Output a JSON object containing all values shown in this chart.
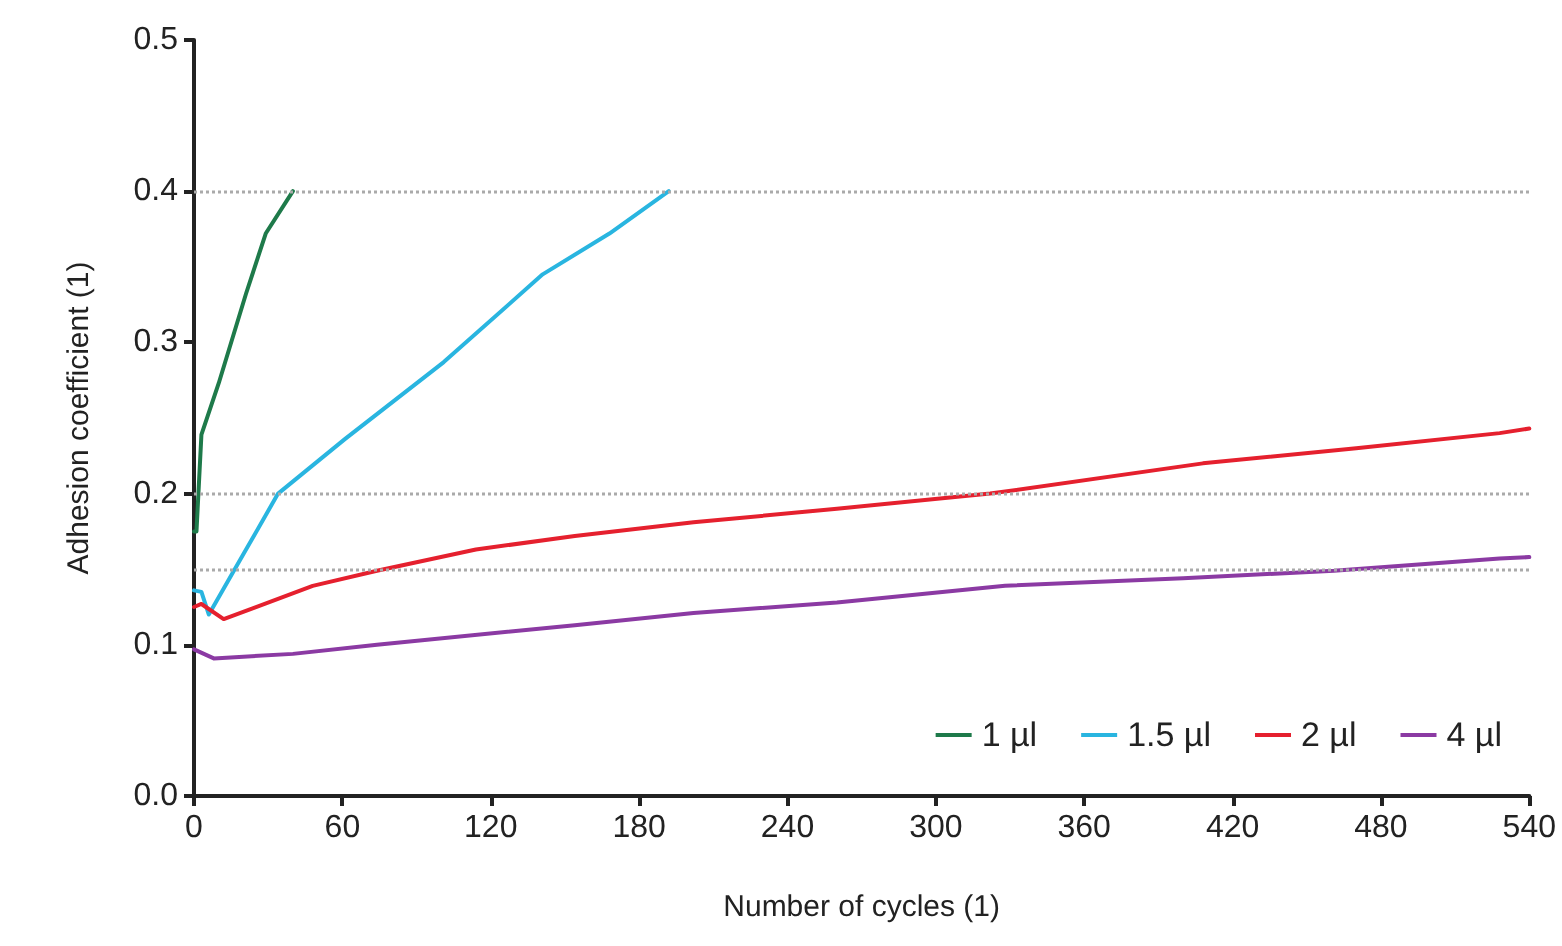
{
  "chart_data": {
    "type": "line",
    "xlabel": "Number of cycles (1)",
    "ylabel": "Adhesion coefficient (1)",
    "xlim": [
      0,
      540
    ],
    "xticks": [
      0,
      60,
      120,
      180,
      240,
      300,
      360,
      420,
      480,
      540
    ],
    "ylim": [
      0,
      0.5
    ],
    "yticks": [
      {
        "value": 0,
        "label": "0.0"
      },
      {
        "value": 0.1,
        "label": "0.1"
      },
      {
        "value": 0.2,
        "label": "0.2"
      },
      {
        "value": 0.3,
        "label": "0.3"
      },
      {
        "value": 0.4,
        "label": "0.4"
      },
      {
        "value": 0.5,
        "label": "0.5"
      }
    ],
    "grid": false,
    "legend": "bottom right",
    "marker": "none",
    "line_style": "solid",
    "ref_lines": [
      {
        "axis": "y",
        "value": 0.4,
        "color": "#aaaaaa",
        "line_style": "dotted"
      },
      {
        "axis": "y",
        "value": 0.2,
        "color": "#aaaaaa",
        "line_style": "dotted"
      },
      {
        "axis": "y",
        "value": 0.15,
        "color": "#aaaaaa",
        "line_style": "dotted"
      }
    ],
    "series": [
      {
        "name": "1 µl",
        "color": "#1e7a4a",
        "x": [
          0,
          1,
          3,
          10,
          21,
          29,
          40
        ],
        "values": [
          0.175,
          0.175,
          0.239,
          0.273,
          0.332,
          0.372,
          0.4
        ]
      },
      {
        "name": "1.5 µl",
        "color": "#29b5e0",
        "x": [
          0,
          3,
          6,
          20,
          34,
          61,
          101,
          141,
          168,
          192
        ],
        "values": [
          0.136,
          0.135,
          0.12,
          0.16,
          0.2,
          0.236,
          0.287,
          0.345,
          0.372,
          0.4
        ]
      },
      {
        "name": "2 µl",
        "color": "#e5202e",
        "x": [
          0,
          3,
          12,
          48,
          74,
          114,
          154,
          202,
          260,
          322,
          408,
          470,
          528,
          540
        ],
        "values": [
          0.125,
          0.127,
          0.117,
          0.139,
          0.149,
          0.163,
          0.172,
          0.181,
          0.19,
          0.2,
          0.22,
          0.23,
          0.24,
          0.243
        ]
      },
      {
        "name": "4 µl",
        "color": "#8b3aa3",
        "x": [
          0,
          8,
          40,
          74,
          154,
          202,
          260,
          328,
          400,
          461,
          528,
          540
        ],
        "values": [
          0.097,
          0.091,
          0.094,
          0.1,
          0.113,
          0.121,
          0.128,
          0.139,
          0.144,
          0.149,
          0.157,
          0.158
        ]
      }
    ]
  }
}
